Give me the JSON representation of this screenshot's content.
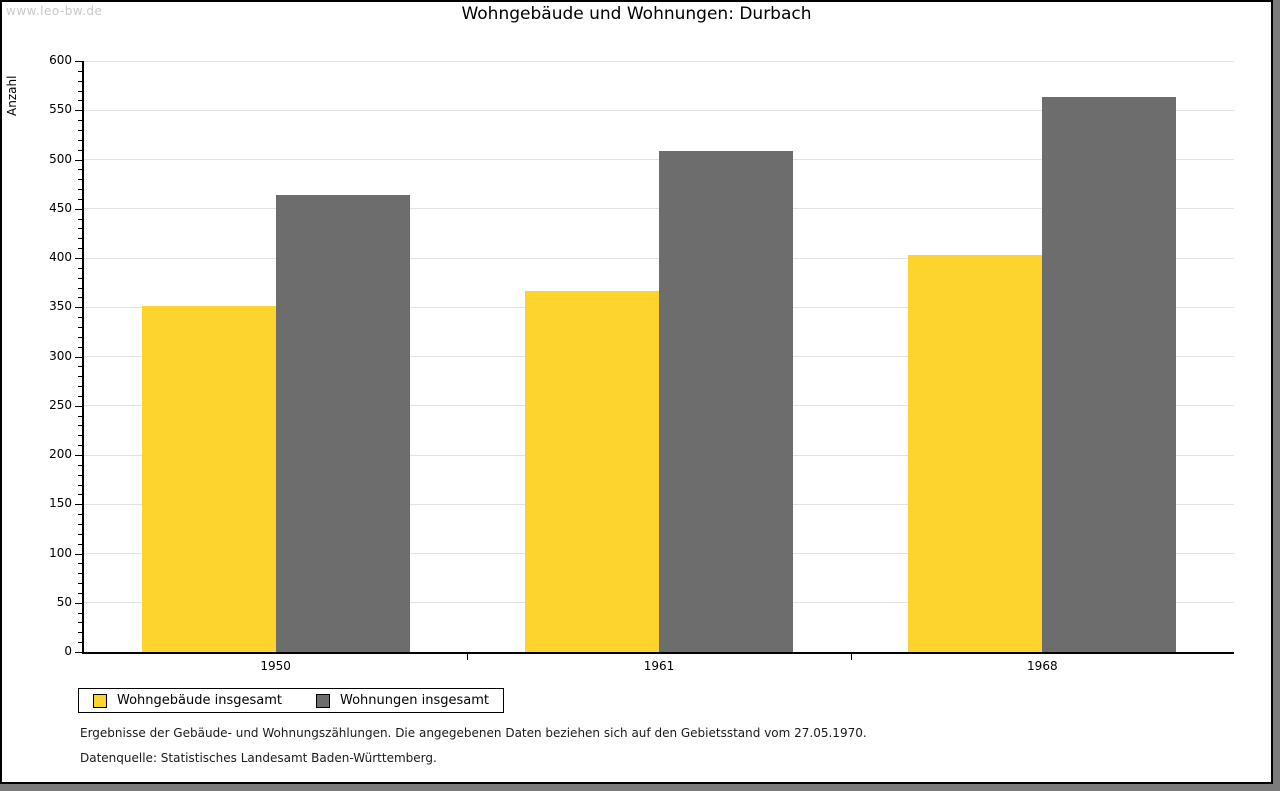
{
  "page": {
    "watermark": "www.leo-bw.de",
    "title": "Wohngebäude und Wohnungen: Durbach",
    "footer_line1": "Ergebnisse der Gebäude- und Wohnungszählungen. Die angegebenen Daten beziehen sich auf den Gebietsstand vom 27.05.1970.",
    "footer_line2": "Datenquelle: Statistisches Landesamt Baden-Württemberg."
  },
  "chart_data": {
    "type": "bar",
    "title": "Wohngebäude und Wohnungen: Durbach",
    "xlabel": "",
    "ylabel": "Anzahl",
    "categories": [
      "1950",
      "1961",
      "1968"
    ],
    "series": [
      {
        "name": "Wohngebäude insgesamt",
        "color": "#fcd42d",
        "values": [
          351,
          366,
          403
        ]
      },
      {
        "name": "Wohnungen insgesamt",
        "color": "#6d6d6d",
        "values": [
          464,
          509,
          563
        ]
      }
    ],
    "ylim": [
      0,
      600
    ],
    "ytick_major": 50,
    "ytick_minor": 10,
    "grid": true,
    "legend_position": "bottom-left"
  },
  "colors": {
    "bar_yellow": "#fcd42d",
    "bar_gray": "#6d6d6d",
    "gridline": "#e2e2e2",
    "watermark": "#c9c9c9",
    "page_border": "#000000",
    "outer_shadow": "#7b7b7b"
  }
}
